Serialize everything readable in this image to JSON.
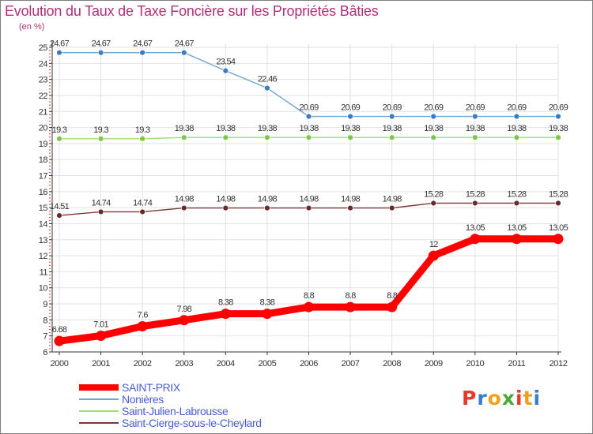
{
  "title": "Evolution du Taux de Taxe Foncière sur les Propriétés Bâties",
  "unit": "(en %)",
  "logo": {
    "letters": [
      "P",
      "r",
      "o",
      "x",
      "i",
      "t",
      "i"
    ],
    "colors": [
      "#e8392c",
      "#3a7ec9",
      "#f0a020",
      "#48a838",
      "#e8392c",
      "#f0a020",
      "#3a7ec9"
    ]
  },
  "chart_data": {
    "type": "line",
    "title": "Evolution du Taux de Taxe Foncière sur les Propriétés Bâties",
    "ylabel": "(en %)",
    "xlabel": "",
    "ylim": [
      6,
      25
    ],
    "grid": true,
    "categories": [
      "2000",
      "2001",
      "2002",
      "2003",
      "2004",
      "2005",
      "2006",
      "2007",
      "2008",
      "2009",
      "2010",
      "2011",
      "2012"
    ],
    "yticks": [
      "6",
      "7",
      "8",
      "9",
      "10",
      "11",
      "12",
      "13",
      "14",
      "15",
      "16",
      "17",
      "18",
      "19",
      "20",
      "21",
      "22",
      "23",
      "24",
      "25"
    ],
    "series": [
      {
        "name": "SAINT-PRIX",
        "color": "#ff0000",
        "marker": "#ff0000",
        "values": [
          6.68,
          7.01,
          7.6,
          7.98,
          8.38,
          8.38,
          8.8,
          8.8,
          8.8,
          12,
          13.05,
          13.05,
          13.05
        ],
        "labels": [
          "6.68",
          "7.01",
          "7.6",
          "7.98",
          "8.38",
          "8.38",
          "8.8",
          "8.8",
          "8.8",
          "12",
          "13.05",
          "13.05",
          "13.05"
        ]
      },
      {
        "name": "Nonières",
        "color": "#6ea4cf",
        "marker": "#3c7bbf",
        "values": [
          24.67,
          24.67,
          24.67,
          24.67,
          23.54,
          22.46,
          20.69,
          20.69,
          20.69,
          20.69,
          20.69,
          20.69,
          20.69
        ],
        "labels": [
          "24.67",
          "24.67",
          "24.67",
          "24.67",
          "23.54",
          "22.46",
          "20.69",
          "20.69",
          "20.69",
          "20.69",
          "20.69",
          "20.69",
          "20.69"
        ]
      },
      {
        "name": "Saint-Julien-Labrousse",
        "color": "#9be06a",
        "marker": "#7ac843",
        "values": [
          19.3,
          19.3,
          19.3,
          19.38,
          19.38,
          19.38,
          19.38,
          19.38,
          19.38,
          19.38,
          19.38,
          19.38,
          19.38
        ],
        "labels": [
          "19.3",
          "19.3",
          "19.3",
          "19.38",
          "19.38",
          "19.38",
          "19.38",
          "19.38",
          "19.38",
          "19.38",
          "19.38",
          "19.38",
          "19.38"
        ]
      },
      {
        "name": "Saint-Cierge-sous-le-Cheylard",
        "color": "#7a3838",
        "marker": "#6a2a2a",
        "values": [
          14.51,
          14.74,
          14.74,
          14.98,
          14.98,
          14.98,
          14.98,
          14.98,
          14.98,
          15.28,
          15.28,
          15.28,
          15.28
        ],
        "labels": [
          "14.51",
          "14.74",
          "14.74",
          "14.98",
          "14.98",
          "14.98",
          "14.98",
          "14.98",
          "14.98",
          "15.28",
          "15.28",
          "15.28",
          "15.28"
        ]
      }
    ]
  }
}
